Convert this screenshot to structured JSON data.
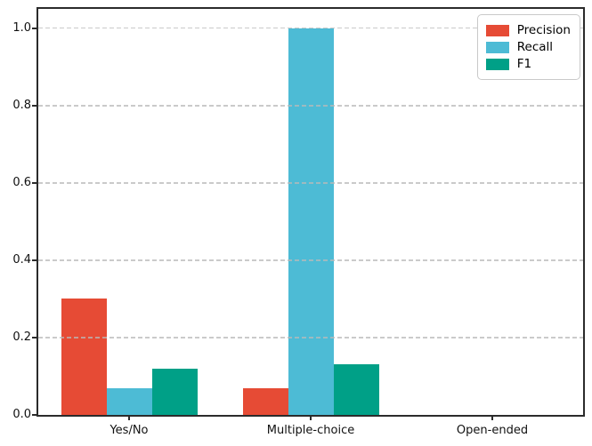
{
  "figure": {
    "background": "#ffffff"
  },
  "chart_data": {
    "type": "bar",
    "categories": [
      "Yes/No",
      "Multiple-choice",
      "Open-ended"
    ],
    "series": [
      {
        "name": "Precision",
        "color": "#E64B35",
        "values": [
          0.3,
          0.07,
          0.0
        ]
      },
      {
        "name": "Recall",
        "color": "#4DBBD5",
        "values": [
          0.07,
          1.0,
          0.0
        ]
      },
      {
        "name": "F1",
        "color": "#00A087",
        "values": [
          0.12,
          0.13,
          0.0
        ]
      }
    ],
    "title": "",
    "xlabel": "",
    "ylabel": "",
    "ylim": [
      0,
      1.05
    ],
    "yticks": [
      0.0,
      0.2,
      0.4,
      0.6,
      0.8,
      1.0
    ],
    "ytick_labels": [
      "0.0",
      "0.2",
      "0.4",
      "0.6",
      "0.8",
      "1.0"
    ],
    "grid": true,
    "grid_style": "dashed",
    "grid_color": "#bdbdbd",
    "spine_color": "#2b2b2b",
    "legend": {
      "position": "upper right",
      "entries": [
        "Precision",
        "Recall",
        "F1"
      ]
    },
    "bar_width_fraction": 0.25
  }
}
